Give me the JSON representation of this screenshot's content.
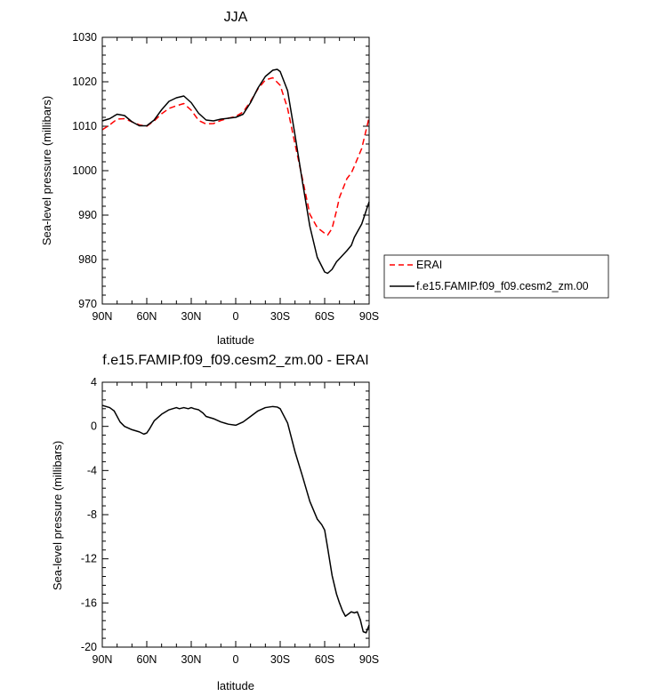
{
  "chart_data": [
    {
      "type": "line",
      "title": "JJA",
      "xlabel": "latitude",
      "ylabel": "Sea-level pressure (millibars)",
      "xlim": [
        -90,
        90
      ],
      "ylim": [
        970,
        1030
      ],
      "x_ticks": [
        -90,
        -60,
        -30,
        0,
        30,
        60,
        90
      ],
      "x_tick_labels": [
        "90N",
        "60N",
        "30N",
        "0",
        "30S",
        "60S",
        "90S"
      ],
      "y_ticks": [
        970,
        980,
        990,
        1000,
        1010,
        1020,
        1030
      ],
      "y_tick_labels": [
        "970",
        "980",
        "990",
        "1000",
        "1010",
        "1020",
        "1030"
      ],
      "grid": false,
      "legend_position": "right, outside plot",
      "series": [
        {
          "name": "ERAI",
          "color": "#ff0000",
          "dash": "dashed",
          "x": [
            -90,
            -85,
            -80,
            -75,
            -70,
            -65,
            -60,
            -55,
            -50,
            -45,
            -40,
            -35,
            -30,
            -25,
            -20,
            -15,
            -10,
            -5,
            0,
            5,
            10,
            15,
            20,
            25,
            30,
            35,
            40,
            45,
            50,
            55,
            60,
            62,
            65,
            68,
            70,
            75,
            78,
            80,
            85,
            90
          ],
          "y": [
            1009.2,
            1010.3,
            1011.6,
            1011.7,
            1011.0,
            1010.3,
            1010.0,
            1011.2,
            1012.8,
            1014.0,
            1014.6,
            1015.1,
            1013.6,
            1011.3,
            1010.5,
            1010.6,
            1011.3,
            1011.8,
            1012.2,
            1013.2,
            1015.6,
            1018.4,
            1020.4,
            1020.9,
            1019.2,
            1014.0,
            1006.0,
            998.2,
            990.2,
            987.2,
            985.9,
            985.5,
            987.0,
            991.0,
            994.0,
            998.2,
            999.5,
            1001.0,
            1005.0,
            1012.0
          ]
        },
        {
          "name": "f.e15.FAMIP.f09_f09.cesm2_zm.00",
          "color": "#000000",
          "dash": "solid",
          "x": [
            -90,
            -85,
            -80,
            -75,
            -70,
            -65,
            -60,
            -55,
            -50,
            -45,
            -40,
            -35,
            -30,
            -25,
            -20,
            -15,
            -10,
            -5,
            0,
            5,
            10,
            15,
            20,
            25,
            28,
            30,
            35,
            40,
            45,
            50,
            55,
            60,
            62,
            65,
            68,
            70,
            75,
            78,
            80,
            85,
            90
          ],
          "y": [
            1011.2,
            1011.7,
            1012.7,
            1012.4,
            1011.0,
            1010.1,
            1010.1,
            1011.4,
            1013.7,
            1015.6,
            1016.4,
            1016.8,
            1015.3,
            1012.9,
            1011.4,
            1011.2,
            1011.6,
            1011.8,
            1012.0,
            1012.7,
            1015.3,
            1018.6,
            1021.2,
            1022.6,
            1022.8,
            1022.3,
            1018.0,
            1008.0,
            997.5,
            987.5,
            980.5,
            977.2,
            976.9,
            977.8,
            979.5,
            980.2,
            982.0,
            983.2,
            985.0,
            988.0,
            993.0
          ]
        }
      ]
    },
    {
      "type": "line",
      "title": "f.e15.FAMIP.f09_f09.cesm2_zm.00 - ERAI",
      "xlabel": "latitude",
      "ylabel": "Sea-level pressure (millibars)",
      "xlim": [
        -90,
        90
      ],
      "ylim": [
        -20,
        4
      ],
      "x_ticks": [
        -90,
        -60,
        -30,
        0,
        30,
        60,
        90
      ],
      "x_tick_labels": [
        "90N",
        "60N",
        "30N",
        "0",
        "30S",
        "60S",
        "90S"
      ],
      "y_ticks": [
        -20,
        -16,
        -12,
        -8,
        -4,
        0,
        4
      ],
      "y_tick_labels": [
        "-20",
        "-16",
        "-12",
        "-8",
        "-4",
        "0",
        "4"
      ],
      "grid": false,
      "series": [
        {
          "color": "#000000",
          "dash": "solid",
          "x": [
            -90,
            -85,
            -82,
            -78,
            -75,
            -70,
            -65,
            -62,
            -60,
            -58,
            -55,
            -50,
            -45,
            -40,
            -38,
            -35,
            -32,
            -30,
            -28,
            -25,
            -22,
            -20,
            -15,
            -10,
            -5,
            0,
            5,
            10,
            15,
            20,
            25,
            28,
            30,
            35,
            40,
            45,
            50,
            55,
            58,
            60,
            62,
            65,
            68,
            70,
            72,
            74,
            76,
            78,
            80,
            82,
            84,
            86,
            88,
            90
          ],
          "y": [
            1.9,
            1.7,
            1.4,
            0.4,
            0.0,
            -0.3,
            -0.5,
            -0.7,
            -0.6,
            -0.2,
            0.5,
            1.1,
            1.5,
            1.7,
            1.6,
            1.7,
            1.6,
            1.7,
            1.6,
            1.5,
            1.2,
            0.9,
            0.7,
            0.4,
            0.2,
            0.1,
            0.4,
            0.9,
            1.4,
            1.7,
            1.8,
            1.75,
            1.6,
            0.3,
            -2.3,
            -4.5,
            -6.8,
            -8.4,
            -8.9,
            -9.4,
            -11.0,
            -13.5,
            -15.2,
            -16.0,
            -16.7,
            -17.2,
            -17.0,
            -16.8,
            -16.9,
            -16.8,
            -17.5,
            -18.6,
            -18.7,
            -18.0
          ]
        }
      ]
    }
  ],
  "legend": {
    "entries": [
      "ERAI",
      "f.e15.FAMIP.f09_f09.cesm2_zm.00"
    ]
  }
}
